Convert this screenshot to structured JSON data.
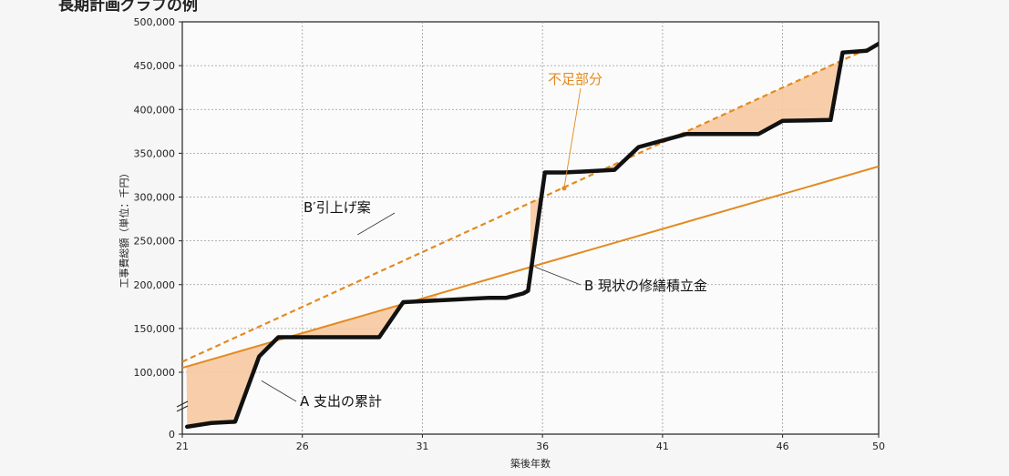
{
  "page_heading": "長期計画グラフの例",
  "chart_data": {
    "type": "line",
    "xlabel": "築後年数",
    "ylabel": "工事費総額（単位：千円）",
    "xlim": [
      21,
      50
    ],
    "ylim": [
      0,
      500000
    ],
    "xticks": [
      21,
      26,
      31,
      36,
      41,
      46,
      50
    ],
    "yticks": [
      0,
      100000,
      150000,
      200000,
      250000,
      300000,
      350000,
      400000,
      450000,
      500000
    ],
    "ytick_labels": [
      "0",
      "100,000",
      "150,000",
      "200,000",
      "250,000",
      "300,000",
      "350,000",
      "400,000",
      "450,000",
      "500,000"
    ],
    "grid": true,
    "y_axis_break": "0–100,000",
    "colors": {
      "cumulative": "#111111",
      "current": "#e38a1f",
      "raised": "#e38a1f",
      "shortfall": "#f6c9a0"
    },
    "series": [
      {
        "name": "A 支出の累計",
        "style": "solid-black",
        "x": [
          21.2,
          22.2,
          23.2,
          24.2,
          25.0,
          29.2,
          30.2,
          33.8,
          34.5,
          35.2,
          35.4,
          36.1,
          36.9,
          39.0,
          40.0,
          42.0,
          43.5,
          45.0,
          46.0,
          48.0,
          48.5,
          49.5,
          50.0
        ],
        "y": [
          12000,
          18000,
          20000,
          118000,
          140000,
          140000,
          180000,
          185000,
          185000,
          190000,
          193000,
          328000,
          328000,
          331000,
          357000,
          372000,
          372000,
          372000,
          387000,
          388000,
          465000,
          467000,
          475000
        ]
      },
      {
        "name": "B 現状の修繕積立金",
        "style": "solid-orange",
        "x": [
          21,
          50
        ],
        "y": [
          105000,
          335000
        ]
      },
      {
        "name": "B′引上げ案",
        "style": "dashed-orange",
        "x": [
          21,
          50
        ],
        "y": [
          112000,
          475000
        ]
      }
    ],
    "annotations": [
      {
        "text": "A 支出の累計",
        "target": "A"
      },
      {
        "text": "B 現状の修繕積立金",
        "target": "B"
      },
      {
        "text": "B′引上げ案",
        "target": "B′"
      },
      {
        "text": "不足部分",
        "target": "shortfall",
        "color": "orange"
      }
    ]
  }
}
